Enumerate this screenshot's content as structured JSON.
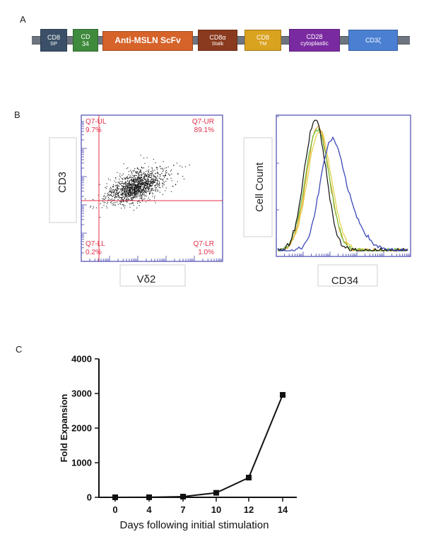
{
  "panels": {
    "a": "A",
    "b": "B",
    "c": "C"
  },
  "construct": {
    "segments": [
      {
        "line1": "CD8",
        "line2": "SP",
        "color": "#3b5068"
      },
      {
        "line1": "CD",
        "line2": "34",
        "color": "#3f8a3d"
      },
      {
        "line1": "Anti-MSLN ScFv",
        "line2": "",
        "color": "#d6632a"
      },
      {
        "line1": "CD8α",
        "line2": "Stalk",
        "color": "#8a3a1e"
      },
      {
        "line1": "CD8",
        "line2": "TM",
        "color": "#d9a21f"
      },
      {
        "line1": "CD28",
        "line2": "cytoplastic",
        "color": "#7a2aa0"
      },
      {
        "line1": "CD3ζ",
        "line2": "",
        "color": "#4a7fd2"
      }
    ]
  },
  "flow": {
    "ylabel": "CD3",
    "xlabel": "Vδ2",
    "quadrants": [
      {
        "name": "Q7-UL",
        "pct": "9.7%"
      },
      {
        "name": "Q7-UR",
        "pct": "89.1%"
      },
      {
        "name": "Q7-LL",
        "pct": "0.2%"
      },
      {
        "name": "Q7-LR",
        "pct": "1.0%"
      }
    ],
    "colors": {
      "gate": "#e0304a",
      "frame": "#4a4ab0",
      "events": "#111111"
    }
  },
  "histogram": {
    "ylabel": "Cell Count",
    "xlabel": "CD34",
    "colors": {
      "frame": "#4a4ab0",
      "blue": "#3b48b8",
      "black": "#111111",
      "green": "#6fbf3a",
      "orange": "#e8a02a",
      "yellow": "#e0d040"
    }
  },
  "chart_data": {
    "type": "line",
    "title": "",
    "xlabel": "Days following initial stimulation",
    "ylabel": "Fold Expansion",
    "categories": [
      "0",
      "4",
      "7",
      "10",
      "12",
      "14"
    ],
    "values": [
      1,
      2,
      20,
      130,
      570,
      2960
    ],
    "ylim": [
      0,
      4000
    ],
    "yticks": [
      0,
      1000,
      2000,
      3000,
      4000
    ],
    "marker": "square",
    "color": "#111111"
  }
}
